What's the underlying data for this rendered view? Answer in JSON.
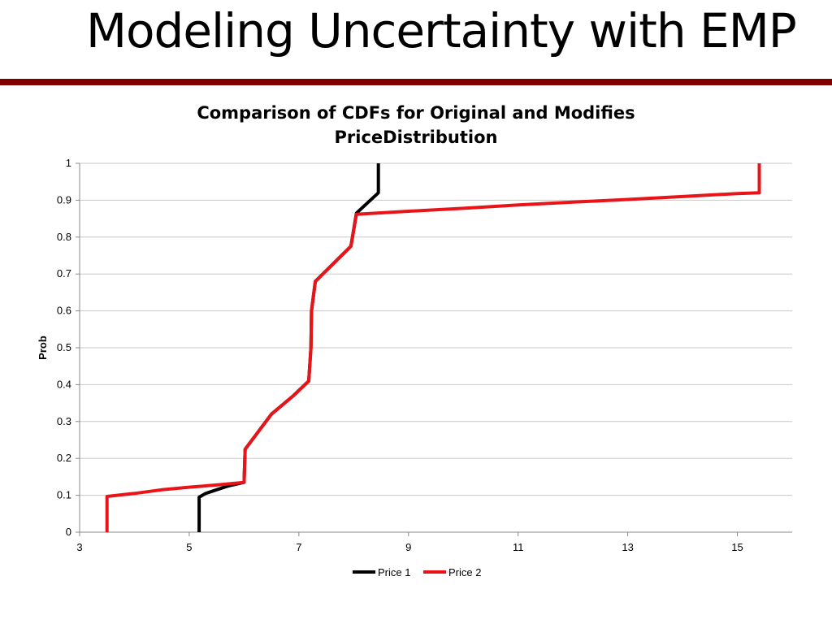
{
  "slide": {
    "title": "Modeling Uncertainty with EMP",
    "rule_color": "#800000"
  },
  "chart_data": {
    "type": "line",
    "title_lines": [
      "Comparison of CDFs for Original and Modifies",
      "PriceDistribution"
    ],
    "xlabel": "",
    "ylabel": "Prob",
    "xlim": [
      3,
      16
    ],
    "ylim": [
      0,
      1
    ],
    "xticks": [
      3,
      5,
      7,
      9,
      11,
      13,
      15
    ],
    "yticks": [
      0,
      0.1,
      0.2,
      0.3,
      0.4,
      0.5,
      0.6,
      0.7,
      0.8,
      0.9,
      1
    ],
    "ytick_labels": [
      "0",
      "0.1",
      "0.2",
      "0.3",
      "0.4",
      "0.5",
      "0.6",
      "0.7",
      "0.8",
      "0.9",
      "1"
    ],
    "grid": "horizontal",
    "legend_position": "bottom",
    "series": [
      {
        "name": "Price 1",
        "color": "#000000",
        "points": [
          [
            5.18,
            0.0
          ],
          [
            5.18,
            0.095
          ],
          [
            5.3,
            0.105
          ],
          [
            5.7,
            0.125
          ],
          [
            6.0,
            0.135
          ],
          [
            6.02,
            0.225
          ],
          [
            6.5,
            0.32
          ],
          [
            6.9,
            0.37
          ],
          [
            7.18,
            0.41
          ],
          [
            7.22,
            0.5
          ],
          [
            7.23,
            0.6
          ],
          [
            7.3,
            0.68
          ],
          [
            7.95,
            0.775
          ],
          [
            8.05,
            0.865
          ],
          [
            8.45,
            0.92
          ],
          [
            8.45,
            1.0
          ]
        ]
      },
      {
        "name": "Price 2",
        "color": "#e8141a",
        "points": [
          [
            3.5,
            0.0
          ],
          [
            3.5,
            0.097
          ],
          [
            4.0,
            0.105
          ],
          [
            4.5,
            0.115
          ],
          [
            5.0,
            0.122
          ],
          [
            5.5,
            0.128
          ],
          [
            6.0,
            0.135
          ],
          [
            6.02,
            0.225
          ],
          [
            6.5,
            0.32
          ],
          [
            6.9,
            0.37
          ],
          [
            7.18,
            0.41
          ],
          [
            7.22,
            0.5
          ],
          [
            7.23,
            0.6
          ],
          [
            7.3,
            0.68
          ],
          [
            7.95,
            0.775
          ],
          [
            8.05,
            0.862
          ],
          [
            9.0,
            0.87
          ],
          [
            10.0,
            0.878
          ],
          [
            11.0,
            0.887
          ],
          [
            12.0,
            0.895
          ],
          [
            13.0,
            0.902
          ],
          [
            14.0,
            0.91
          ],
          [
            15.0,
            0.918
          ],
          [
            15.4,
            0.92
          ],
          [
            15.4,
            1.0
          ]
        ]
      }
    ]
  }
}
